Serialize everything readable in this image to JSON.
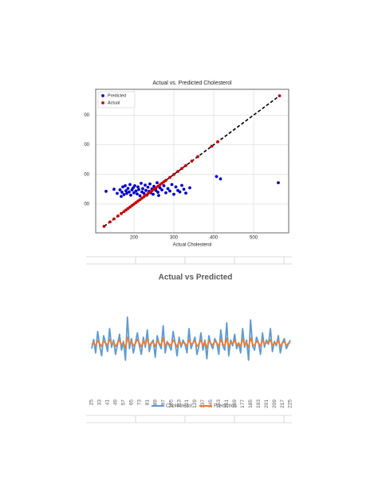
{
  "chart_data": [
    {
      "type": "scatter",
      "title": "Actual vs. Predicted Cholesterol",
      "xlabel": "Actual Cholesterol",
      "xlim": [
        104,
        588
      ],
      "ylim": [
        103,
        587
      ],
      "xticks": [
        200,
        300,
        400,
        500
      ],
      "yticks": [
        {
          "value": 200,
          "label": "00"
        },
        {
          "value": 300,
          "label": "00"
        },
        {
          "value": 400,
          "label": "00"
        },
        {
          "value": 500,
          "label": "00"
        }
      ],
      "grid": true,
      "legend": "upper left",
      "series": [
        {
          "name": "Predicted",
          "color": "#0000cc",
          "x": [
            130,
            150,
            158,
            165,
            170,
            172,
            175,
            178,
            180,
            182,
            185,
            188,
            190,
            192,
            195,
            198,
            200,
            202,
            205,
            208,
            210,
            212,
            215,
            218,
            220,
            222,
            225,
            228,
            230,
            232,
            235,
            238,
            240,
            242,
            245,
            248,
            250,
            255,
            258,
            260,
            262,
            265,
            270,
            275,
            280,
            285,
            290,
            295,
            300,
            305,
            310,
            315,
            320,
            325,
            330,
            340,
            407,
            417,
            562,
            168
          ],
          "values": [
            243,
            250,
            236,
            248,
            240,
            258,
            232,
            262,
            245,
            236,
            253,
            241,
            266,
            230,
            248,
            255,
            238,
            262,
            244,
            234,
            258,
            249,
            228,
            270,
            241,
            252,
            236,
            264,
            246,
            230,
            257,
            243,
            268,
            238,
            251,
            233,
            260,
            246,
            272,
            240,
            229,
            255,
            248,
            262,
            238,
            252,
            244,
            266,
            233,
            258,
            246,
            241,
            263,
            250,
            237,
            255,
            293,
            285,
            272,
            226
          ]
        },
        {
          "name": "Actual",
          "color": "#cc0000",
          "x": [
            125,
            140,
            150,
            160,
            168,
            175,
            180,
            185,
            190,
            195,
            200,
            205,
            210,
            215,
            220,
            225,
            230,
            235,
            240,
            245,
            250,
            255,
            260,
            265,
            270,
            275,
            280,
            290,
            300,
            310,
            320,
            330,
            345,
            360,
            395,
            410,
            565
          ],
          "values": [
            125,
            140,
            150,
            160,
            168,
            175,
            180,
            185,
            190,
            195,
            200,
            205,
            210,
            215,
            220,
            225,
            230,
            235,
            240,
            245,
            250,
            255,
            260,
            265,
            270,
            275,
            280,
            290,
            300,
            310,
            320,
            330,
            345,
            360,
            395,
            410,
            565
          ]
        }
      ]
    },
    {
      "type": "line",
      "title": "Actual vs Predicted",
      "ylim": [
        100,
        450
      ],
      "categories": [
        25,
        null,
        null,
        null,
        33,
        null,
        null,
        null,
        41,
        null,
        null,
        null,
        49,
        null,
        null,
        null,
        57,
        null,
        null,
        null,
        65,
        null,
        null,
        null,
        73,
        null,
        null,
        null,
        81,
        null,
        null,
        null,
        89,
        null,
        null,
        null,
        97,
        null,
        null,
        null,
        105,
        null,
        null,
        null,
        113,
        null,
        null,
        null,
        121,
        null,
        null,
        null,
        129,
        null,
        null,
        null,
        137,
        null,
        null,
        null,
        145,
        null,
        null,
        null,
        153,
        null,
        null,
        null,
        161,
        null,
        null,
        null,
        169,
        null,
        null,
        null,
        177,
        null,
        null,
        null,
        185,
        null,
        null,
        null,
        193,
        null,
        null,
        null,
        201,
        null,
        null,
        null,
        209,
        null,
        null,
        null,
        217,
        null,
        null,
        null,
        225
      ],
      "series": [
        {
          "name": "Cholesterol",
          "color": "#5b9bd5",
          "values": [
            230,
            262,
            215,
            290,
            240,
            205,
            275,
            250,
            220,
            300,
            235,
            260,
            210,
            245,
            280,
            225,
            255,
            190,
            340,
            230,
            265,
            215,
            250,
            285,
            240,
            210,
            270,
            235,
            295,
            220,
            250,
            260,
            200,
            275,
            245,
            230,
            310,
            215,
            255,
            240,
            225,
            290,
            250,
            205,
            270,
            235,
            260,
            245,
            215,
            300,
            230,
            250,
            270,
            210,
            240,
            285,
            225,
            260,
            195,
            275,
            245,
            230,
            265,
            250,
            210,
            295,
            240,
            225,
            320,
            205,
            260,
            240,
            280,
            230,
            250,
            215,
            300,
            235,
            260,
            190,
            330,
            240,
            225,
            270,
            250,
            210,
            285,
            235,
            260,
            245,
            300,
            220,
            255,
            240,
            275,
            215,
            250,
            265,
            230,
            245,
            260
          ]
        },
        {
          "name": "Prediction",
          "color": "#ed7d31",
          "values": [
            245,
            250,
            240,
            258,
            248,
            238,
            255,
            250,
            242,
            262,
            246,
            252,
            238,
            249,
            260,
            243,
            250,
            232,
            270,
            245,
            255,
            240,
            248,
            262,
            250,
            236,
            256,
            244,
            265,
            240,
            250,
            252,
            238,
            258,
            248,
            242,
            268,
            238,
            252,
            246,
            240,
            260,
            250,
            236,
            256,
            244,
            252,
            248,
            238,
            262,
            244,
            250,
            258,
            238,
            246,
            260,
            240,
            254,
            232,
            258,
            248,
            242,
            256,
            250,
            238,
            262,
            246,
            240,
            266,
            236,
            254,
            246,
            260,
            242,
            250,
            238,
            264,
            244,
            252,
            234,
            268,
            246,
            240,
            256,
            250,
            238,
            260,
            244,
            252,
            248,
            262,
            240,
            252,
            246,
            258,
            238,
            250,
            254,
            242,
            248,
            252
          ]
        }
      ]
    }
  ]
}
